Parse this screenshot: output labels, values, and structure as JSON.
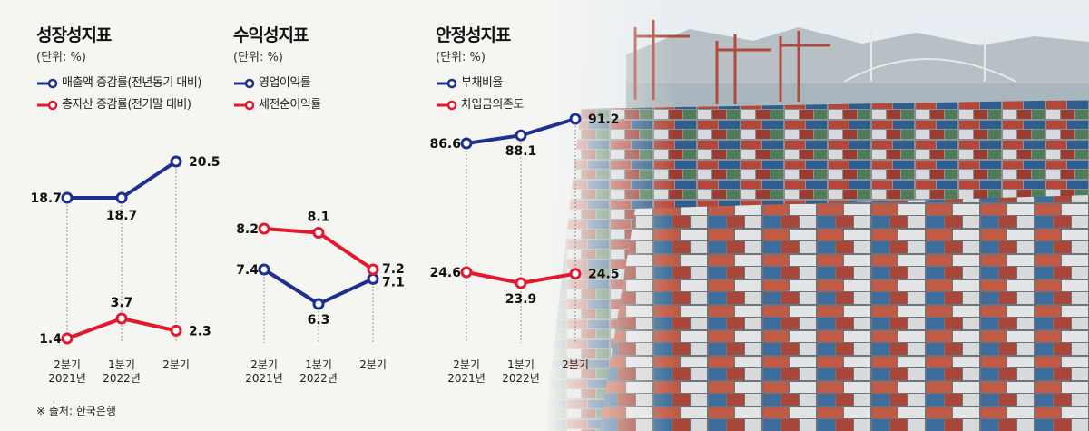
{
  "colors": {
    "blue": "#1d2f8f",
    "red": "#e3182d"
  },
  "source": "※ 출처: 한국은행",
  "categories": [
    {
      "line1": "2분기",
      "line2": "2021년"
    },
    {
      "line1": "1분기",
      "line2": "2022년"
    },
    {
      "line1": "2분기",
      "line2": ""
    }
  ],
  "chart_data": [
    {
      "type": "line",
      "title": "성장성지표",
      "unit": "(단위: %)",
      "categories": [
        "2분기 2021년",
        "1분기 2022년",
        "2분기"
      ],
      "series": [
        {
          "name": "매출액 증감률(전년동기 대비)",
          "color": "#1d2f8f",
          "values": [
            18.7,
            18.7,
            20.5
          ]
        },
        {
          "name": "총자산 증감률(전기말 대비)",
          "color": "#e3182d",
          "values": [
            1.4,
            3.7,
            2.3
          ]
        }
      ]
    },
    {
      "type": "line",
      "title": "수익성지표",
      "unit": "(단위: %)",
      "categories": [
        "2분기 2021년",
        "1분기 2022년",
        "2분기"
      ],
      "series": [
        {
          "name": "영업이익률",
          "color": "#1d2f8f",
          "values": [
            7.4,
            6.3,
            7.1
          ]
        },
        {
          "name": "세전순이익률",
          "color": "#e3182d",
          "values": [
            8.2,
            8.1,
            7.2
          ]
        }
      ]
    },
    {
      "type": "line",
      "title": "안정성지표",
      "unit": "(단위: %)",
      "categories": [
        "2분기 2021년",
        "1분기 2022년",
        "2분기"
      ],
      "series": [
        {
          "name": "부채비율",
          "color": "#1d2f8f",
          "values": [
            86.6,
            88.1,
            91.2
          ]
        },
        {
          "name": "차입금의존도",
          "color": "#e3182d",
          "values": [
            24.6,
            23.9,
            24.5
          ]
        }
      ]
    }
  ]
}
